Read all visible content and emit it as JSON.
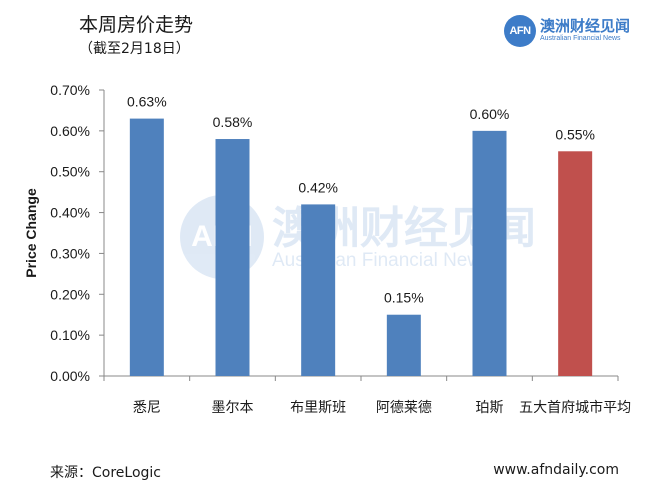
{
  "header": {
    "title": "本周房价走势",
    "subtitle": "（截至2月18日）"
  },
  "logo": {
    "abbr": "AFN",
    "name_cn": "澳洲财经见闻",
    "name_en": "Australian Financial News",
    "color": "#3d7cc8"
  },
  "watermark": {
    "abbr": "AFN",
    "name_cn": "澳洲财经见闻",
    "name_en": "Australian Financial News"
  },
  "chart_data": {
    "type": "bar",
    "title": "",
    "xlabel": "",
    "ylabel": "Price Change",
    "categories": [
      "悉尼",
      "墨尔本",
      "布里斯班",
      "阿德莱德",
      "珀斯",
      "五大首府城市平均"
    ],
    "values": [
      0.63,
      0.58,
      0.42,
      0.15,
      0.6,
      0.55
    ],
    "data_labels": [
      "0.63%",
      "0.58%",
      "0.42%",
      "0.15%",
      "0.60%",
      "0.55%"
    ],
    "bar_colors": [
      "#4f81bd",
      "#4f81bd",
      "#4f81bd",
      "#4f81bd",
      "#4f81bd",
      "#c0504d"
    ],
    "ylim": [
      0,
      0.7
    ],
    "yticks": [
      0,
      0.1,
      0.2,
      0.3,
      0.4,
      0.5,
      0.6,
      0.7
    ],
    "ytick_labels": [
      "0.00%",
      "0.10%",
      "0.20%",
      "0.30%",
      "0.40%",
      "0.50%",
      "0.60%",
      "0.70%"
    ],
    "grid": false,
    "legend": "none"
  },
  "footer": {
    "source": "来源：CoreLogic",
    "url": "www.afndaily.com"
  }
}
